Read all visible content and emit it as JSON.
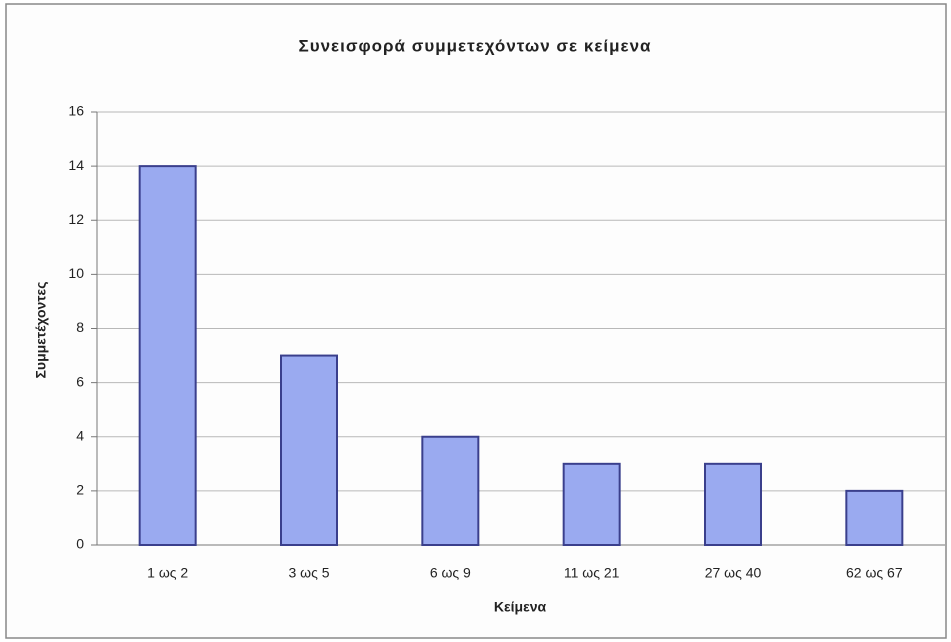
{
  "chart_data": {
    "type": "bar",
    "title": "Συνεισφορά συμμετεχόντων σε κείμενα",
    "x_label": "Κείμενα",
    "y_label": "Συμμετέχοντες",
    "categories": [
      "1 ως 2",
      "3 ως 5",
      "6 ως 9",
      "11 ως 21",
      "27 ως 40",
      "62 ως 67"
    ],
    "values": [
      14,
      7,
      4,
      3,
      3,
      2
    ],
    "color": "#9aaaf0",
    "ylim": [
      0,
      16
    ],
    "yticks": [
      0,
      2,
      4,
      6,
      8,
      10,
      12,
      14,
      16
    ],
    "grid": true
  }
}
